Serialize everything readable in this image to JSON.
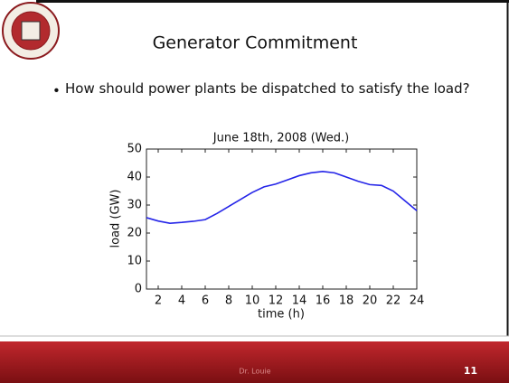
{
  "slide": {
    "title": "Generator Commitment",
    "bullet": "How should power plants be dispatched to satisfy the load?",
    "footer": "Dr. Louie",
    "page_number": "11"
  },
  "chart_data": {
    "type": "line",
    "title": "June 18th, 2008 (Wed.)",
    "x_label": "time (h)",
    "y_label": "load (GW)",
    "x": [
      1,
      2,
      3,
      4,
      5,
      6,
      7,
      8,
      9,
      10,
      11,
      12,
      13,
      14,
      15,
      16,
      17,
      18,
      19,
      20,
      21,
      22,
      23,
      24
    ],
    "series": [
      {
        "name": "load",
        "color": "#2424e8",
        "values": [
          25.5,
          24.3,
          23.5,
          23.8,
          24.2,
          24.8,
          27,
          29.5,
          32,
          34.5,
          36.5,
          37.5,
          39,
          40.5,
          41.5,
          42,
          41.5,
          40,
          38.5,
          37.3,
          37,
          35,
          31.5,
          28
        ]
      }
    ],
    "xlim": [
      1,
      24
    ],
    "xticks": [
      2,
      4,
      6,
      8,
      10,
      12,
      14,
      16,
      18,
      20,
      22,
      24
    ],
    "ylim": [
      0,
      50
    ],
    "yticks": [
      0,
      10,
      20,
      30,
      40,
      50
    ]
  }
}
